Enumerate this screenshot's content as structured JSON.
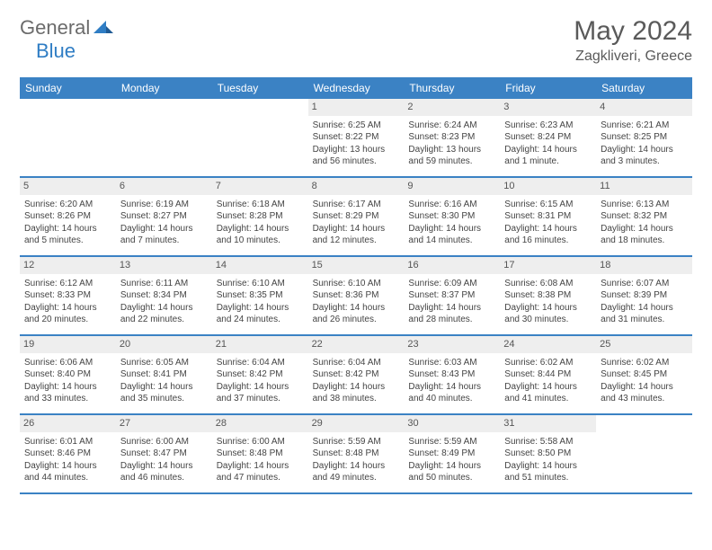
{
  "logo": {
    "text1": "General",
    "text2": "Blue"
  },
  "title": "May 2024",
  "location": "Zagkliveri, Greece",
  "header_bg": "#3b82c4",
  "row_border": "#3b82c4",
  "daynum_bg": "#eeeeee",
  "weekdays": [
    "Sunday",
    "Monday",
    "Tuesday",
    "Wednesday",
    "Thursday",
    "Friday",
    "Saturday"
  ],
  "weeks": [
    [
      null,
      null,
      null,
      {
        "n": "1",
        "sr": "6:25 AM",
        "ss": "8:22 PM",
        "dl": "13 hours and 56 minutes."
      },
      {
        "n": "2",
        "sr": "6:24 AM",
        "ss": "8:23 PM",
        "dl": "13 hours and 59 minutes."
      },
      {
        "n": "3",
        "sr": "6:23 AM",
        "ss": "8:24 PM",
        "dl": "14 hours and 1 minute."
      },
      {
        "n": "4",
        "sr": "6:21 AM",
        "ss": "8:25 PM",
        "dl": "14 hours and 3 minutes."
      }
    ],
    [
      {
        "n": "5",
        "sr": "6:20 AM",
        "ss": "8:26 PM",
        "dl": "14 hours and 5 minutes."
      },
      {
        "n": "6",
        "sr": "6:19 AM",
        "ss": "8:27 PM",
        "dl": "14 hours and 7 minutes."
      },
      {
        "n": "7",
        "sr": "6:18 AM",
        "ss": "8:28 PM",
        "dl": "14 hours and 10 minutes."
      },
      {
        "n": "8",
        "sr": "6:17 AM",
        "ss": "8:29 PM",
        "dl": "14 hours and 12 minutes."
      },
      {
        "n": "9",
        "sr": "6:16 AM",
        "ss": "8:30 PM",
        "dl": "14 hours and 14 minutes."
      },
      {
        "n": "10",
        "sr": "6:15 AM",
        "ss": "8:31 PM",
        "dl": "14 hours and 16 minutes."
      },
      {
        "n": "11",
        "sr": "6:13 AM",
        "ss": "8:32 PM",
        "dl": "14 hours and 18 minutes."
      }
    ],
    [
      {
        "n": "12",
        "sr": "6:12 AM",
        "ss": "8:33 PM",
        "dl": "14 hours and 20 minutes."
      },
      {
        "n": "13",
        "sr": "6:11 AM",
        "ss": "8:34 PM",
        "dl": "14 hours and 22 minutes."
      },
      {
        "n": "14",
        "sr": "6:10 AM",
        "ss": "8:35 PM",
        "dl": "14 hours and 24 minutes."
      },
      {
        "n": "15",
        "sr": "6:10 AM",
        "ss": "8:36 PM",
        "dl": "14 hours and 26 minutes."
      },
      {
        "n": "16",
        "sr": "6:09 AM",
        "ss": "8:37 PM",
        "dl": "14 hours and 28 minutes."
      },
      {
        "n": "17",
        "sr": "6:08 AM",
        "ss": "8:38 PM",
        "dl": "14 hours and 30 minutes."
      },
      {
        "n": "18",
        "sr": "6:07 AM",
        "ss": "8:39 PM",
        "dl": "14 hours and 31 minutes."
      }
    ],
    [
      {
        "n": "19",
        "sr": "6:06 AM",
        "ss": "8:40 PM",
        "dl": "14 hours and 33 minutes."
      },
      {
        "n": "20",
        "sr": "6:05 AM",
        "ss": "8:41 PM",
        "dl": "14 hours and 35 minutes."
      },
      {
        "n": "21",
        "sr": "6:04 AM",
        "ss": "8:42 PM",
        "dl": "14 hours and 37 minutes."
      },
      {
        "n": "22",
        "sr": "6:04 AM",
        "ss": "8:42 PM",
        "dl": "14 hours and 38 minutes."
      },
      {
        "n": "23",
        "sr": "6:03 AM",
        "ss": "8:43 PM",
        "dl": "14 hours and 40 minutes."
      },
      {
        "n": "24",
        "sr": "6:02 AM",
        "ss": "8:44 PM",
        "dl": "14 hours and 41 minutes."
      },
      {
        "n": "25",
        "sr": "6:02 AM",
        "ss": "8:45 PM",
        "dl": "14 hours and 43 minutes."
      }
    ],
    [
      {
        "n": "26",
        "sr": "6:01 AM",
        "ss": "8:46 PM",
        "dl": "14 hours and 44 minutes."
      },
      {
        "n": "27",
        "sr": "6:00 AM",
        "ss": "8:47 PM",
        "dl": "14 hours and 46 minutes."
      },
      {
        "n": "28",
        "sr": "6:00 AM",
        "ss": "8:48 PM",
        "dl": "14 hours and 47 minutes."
      },
      {
        "n": "29",
        "sr": "5:59 AM",
        "ss": "8:48 PM",
        "dl": "14 hours and 49 minutes."
      },
      {
        "n": "30",
        "sr": "5:59 AM",
        "ss": "8:49 PM",
        "dl": "14 hours and 50 minutes."
      },
      {
        "n": "31",
        "sr": "5:58 AM",
        "ss": "8:50 PM",
        "dl": "14 hours and 51 minutes."
      },
      null
    ]
  ],
  "labels": {
    "sunrise": "Sunrise:",
    "sunset": "Sunset:",
    "daylight": "Daylight:"
  }
}
